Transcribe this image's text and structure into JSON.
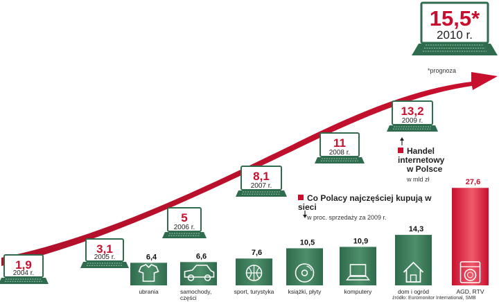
{
  "colors": {
    "accent": "#c8102e",
    "green_dark": "#2f6b4d",
    "green_light": "#8fbfa2",
    "bar_red": "#e0344a"
  },
  "legend_main": {
    "title": "Handel internetowy w Polsce",
    "title_line1": "Handel internetowy",
    "title_line2": "w Polsce",
    "unit": "w mld zł"
  },
  "legend_bars": {
    "title": "Co Polacy najczęściej kupują w sieci",
    "unit": "w proc. sprzedaży za 2009 r."
  },
  "footnote": "*prognoza",
  "source": "źródło: Euromonitor International, SMB",
  "chart_data": [
    {
      "type": "line",
      "title": "Handel internetowy w Polsce",
      "ylabel": "w mld zł",
      "categories": [
        "2004 r.",
        "2005 r.",
        "2006 r.",
        "2007 r.",
        "2008 r.",
        "2009 r.",
        "2010 r."
      ],
      "values": [
        1.9,
        3.1,
        5,
        8.1,
        11,
        13.2,
        15.5
      ],
      "labels": [
        "1,9",
        "3,1",
        "5",
        "8,1",
        "11",
        "13,2",
        "15,5*"
      ],
      "annotation": "*prognoza"
    },
    {
      "type": "bar",
      "title": "Co Polacy najczęściej kupują w sieci",
      "ylabel": "w proc. sprzedaży za 2009 r.",
      "categories": [
        "ubrania",
        "samochody, części",
        "sport, turystyka",
        "książki, płyty",
        "komputery",
        "dom i ogród",
        "AGD, RTV"
      ],
      "category_lines": [
        [
          "ubrania"
        ],
        [
          "samochody,",
          "części"
        ],
        [
          "sport, turystyka"
        ],
        [
          "książki, płyty"
        ],
        [
          "komputery"
        ],
        [
          "dom i ogród"
        ],
        [
          "AGD, RTV"
        ]
      ],
      "icons": [
        "shirt-icon",
        "car-icon",
        "ball-icon",
        "disc-icon",
        "computer-icon",
        "house-icon",
        "washing-machine-icon"
      ],
      "values": [
        6.4,
        6.6,
        7.6,
        10.5,
        10.9,
        14.3,
        27.6
      ],
      "labels": [
        "6,4",
        "6,6",
        "7,6",
        "10,5",
        "10,9",
        "14,3",
        "27,6"
      ]
    }
  ]
}
